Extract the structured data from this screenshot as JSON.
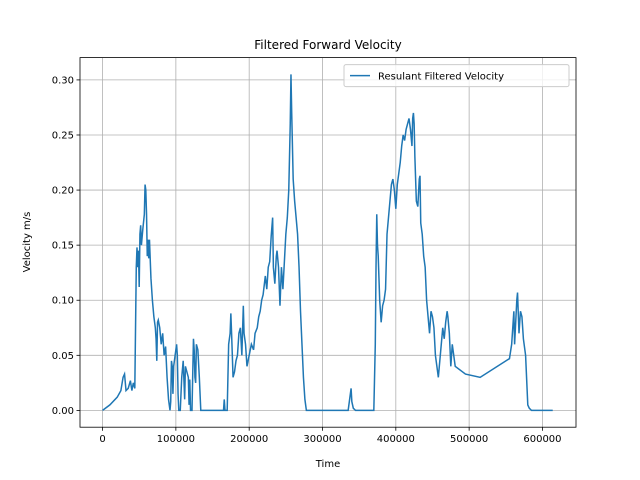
{
  "chart_data": {
    "type": "line",
    "title": "Filtered Forward Velocity",
    "x_label": "Time",
    "y_label": "Velocity m/s",
    "grid": true,
    "legend": "upper right",
    "xlim": [
      -30750,
      645750
    ],
    "ylim": [
      -0.01525,
      0.32025
    ],
    "xticks": [
      0,
      100000,
      200000,
      300000,
      400000,
      500000,
      600000
    ],
    "yticks": [
      {
        "value": 0,
        "label": "0.00"
      },
      {
        "value": 0.05,
        "label": "0.05"
      },
      {
        "value": 0.1,
        "label": "0.10"
      },
      {
        "value": 0.15,
        "label": "0.15"
      },
      {
        "value": 0.2,
        "label": "0.20"
      },
      {
        "value": 0.25,
        "label": "0.25"
      },
      {
        "value": 0.3,
        "label": "0.30"
      }
    ],
    "x": [
      0,
      10000,
      20000,
      25000,
      28000,
      30000,
      32000,
      35000,
      38000,
      40000,
      42000,
      44000,
      46000,
      47000,
      48000,
      49000,
      50000,
      51000,
      52000,
      53000,
      55000,
      57000,
      58000,
      59000,
      60000,
      61000,
      62000,
      63000,
      64000,
      66000,
      68000,
      70000,
      72000,
      73000,
      74000,
      75000,
      76000,
      78000,
      80000,
      82000,
      84000,
      86000,
      88000,
      90000,
      92000,
      93000,
      94000,
      95000,
      96000,
      97000,
      100000,
      101000,
      102000,
      103000,
      104000,
      106000,
      108000,
      110000,
      112000,
      113000,
      115000,
      117000,
      118000,
      119000,
      120000,
      122000,
      124000,
      125000,
      126000,
      127000,
      128000,
      130000,
      132000,
      134000,
      165000,
      166000,
      167000,
      170000,
      172000,
      174000,
      175000,
      176000,
      178000,
      180000,
      182000,
      184000,
      186000,
      188000,
      190000,
      192000,
      193000,
      195000,
      197000,
      200000,
      203000,
      206000,
      208000,
      211000,
      213000,
      215000,
      217000,
      219000,
      222000,
      224000,
      226000,
      228000,
      230000,
      232000,
      233000,
      235000,
      237000,
      238000,
      240000,
      242000,
      244000,
      246000,
      248000,
      250000,
      252000,
      254000,
      256000,
      257000,
      258000,
      260000,
      262000,
      264000,
      266000,
      268000,
      270000,
      272000,
      274000,
      276000,
      278000,
      335000,
      338000,
      339000,
      340000,
      342000,
      345000,
      370000,
      372000,
      373000,
      374000,
      375000,
      376000,
      377000,
      378000,
      379000,
      380000,
      382000,
      384000,
      386000,
      388000,
      390000,
      392000,
      394000,
      396000,
      398000,
      400000,
      402000,
      404000,
      406000,
      408000,
      410000,
      412000,
      414000,
      416000,
      418000,
      420000,
      422000,
      423000,
      424000,
      425000,
      426000,
      428000,
      430000,
      432000,
      433000,
      434000,
      436000,
      438000,
      440000,
      442000,
      444000,
      446000,
      448000,
      450000,
      452000,
      454000,
      456000,
      458000,
      460000,
      462000,
      464000,
      466000,
      468000,
      470000,
      471000,
      473000,
      475000,
      477000,
      479000,
      481000,
      495000,
      515000,
      555000,
      558000,
      561000,
      562000,
      565000,
      566000,
      568000,
      570000,
      572000,
      574000,
      577000,
      580000,
      582000,
      585000,
      614000
    ],
    "series": [
      {
        "name": "Resulant Filtered Velocity",
        "color": "#1f77b4",
        "values": [
          0,
          0.005,
          0.012,
          0.018,
          0.03,
          0.033,
          0.018,
          0.02,
          0.027,
          0.018,
          0.025,
          0.02,
          0.13,
          0.148,
          0.13,
          0.145,
          0.112,
          0.16,
          0.168,
          0.15,
          0.165,
          0.178,
          0.205,
          0.2,
          0.178,
          0.14,
          0.155,
          0.138,
          0.155,
          0.12,
          0.1,
          0.085,
          0.075,
          0.065,
          0.045,
          0.08,
          0.082,
          0.075,
          0.06,
          0.07,
          0.05,
          0.058,
          0.03,
          0.01,
          0,
          0.008,
          0.045,
          0.04,
          0.015,
          0.04,
          0.055,
          0.06,
          0.05,
          0.015,
          0,
          0,
          0.03,
          0.045,
          0.01,
          0.04,
          0.035,
          0.03,
          0.005,
          0.028,
          0,
          0,
          0.065,
          0.055,
          0.03,
          0.025,
          0.06,
          0.055,
          0.03,
          0,
          0,
          0.01,
          0,
          0,
          0.06,
          0.07,
          0.088,
          0.07,
          0.03,
          0.035,
          0.045,
          0.05,
          0.07,
          0.075,
          0.05,
          0.095,
          0.07,
          0.06,
          0.04,
          0.05,
          0.06,
          0.055,
          0.07,
          0.075,
          0.085,
          0.09,
          0.1,
          0.105,
          0.122,
          0.11,
          0.13,
          0.135,
          0.158,
          0.175,
          0.13,
          0.115,
          0.14,
          0.145,
          0.13,
          0.095,
          0.13,
          0.11,
          0.135,
          0.16,
          0.175,
          0.2,
          0.26,
          0.305,
          0.27,
          0.21,
          0.19,
          0.175,
          0.16,
          0.13,
          0.09,
          0.06,
          0.03,
          0.01,
          0,
          0,
          0.015,
          0.02,
          0.008,
          0.002,
          0,
          0,
          0.06,
          0.13,
          0.178,
          0.15,
          0.14,
          0.12,
          0.1,
          0.09,
          0.08,
          0.095,
          0.1,
          0.11,
          0.16,
          0.175,
          0.19,
          0.205,
          0.21,
          0.2,
          0.183,
          0.205,
          0.215,
          0.225,
          0.24,
          0.25,
          0.245,
          0.255,
          0.26,
          0.265,
          0.255,
          0.24,
          0.265,
          0.27,
          0.26,
          0.23,
          0.19,
          0.185,
          0.21,
          0.213,
          0.17,
          0.16,
          0.14,
          0.13,
          0.1,
          0.085,
          0.07,
          0.09,
          0.085,
          0.075,
          0.05,
          0.04,
          0.03,
          0.045,
          0.06,
          0.075,
          0.065,
          0.08,
          0.09,
          0.085,
          0.07,
          0.04,
          0.06,
          0.05,
          0.04,
          0.033,
          0.03,
          0.047,
          0.06,
          0.09,
          0.06,
          0.1,
          0.107,
          0.07,
          0.09,
          0.085,
          0.065,
          0.05,
          0.005,
          0.002,
          0,
          0
        ]
      }
    ]
  }
}
